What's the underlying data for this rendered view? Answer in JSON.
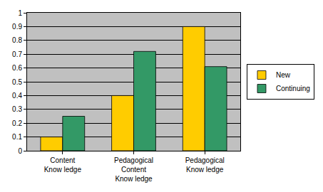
{
  "chart_data": {
    "type": "bar",
    "categories": [
      "Content Know ledge",
      "Pedagogical Content Know ledge",
      "Pedagogical Know ledge"
    ],
    "series": [
      {
        "name": "New",
        "color": "#ffcc00",
        "values": [
          0.1,
          0.4,
          0.9
        ]
      },
      {
        "name": "Continuing",
        "color": "#339966",
        "values": [
          0.25,
          0.72,
          0.61
        ]
      }
    ],
    "ylim": [
      0,
      1
    ],
    "yticks": [
      0,
      0.1,
      0.2,
      0.3,
      0.4,
      0.5,
      0.6,
      0.7,
      0.8,
      0.9,
      1
    ],
    "grid": true,
    "legend": "right"
  }
}
